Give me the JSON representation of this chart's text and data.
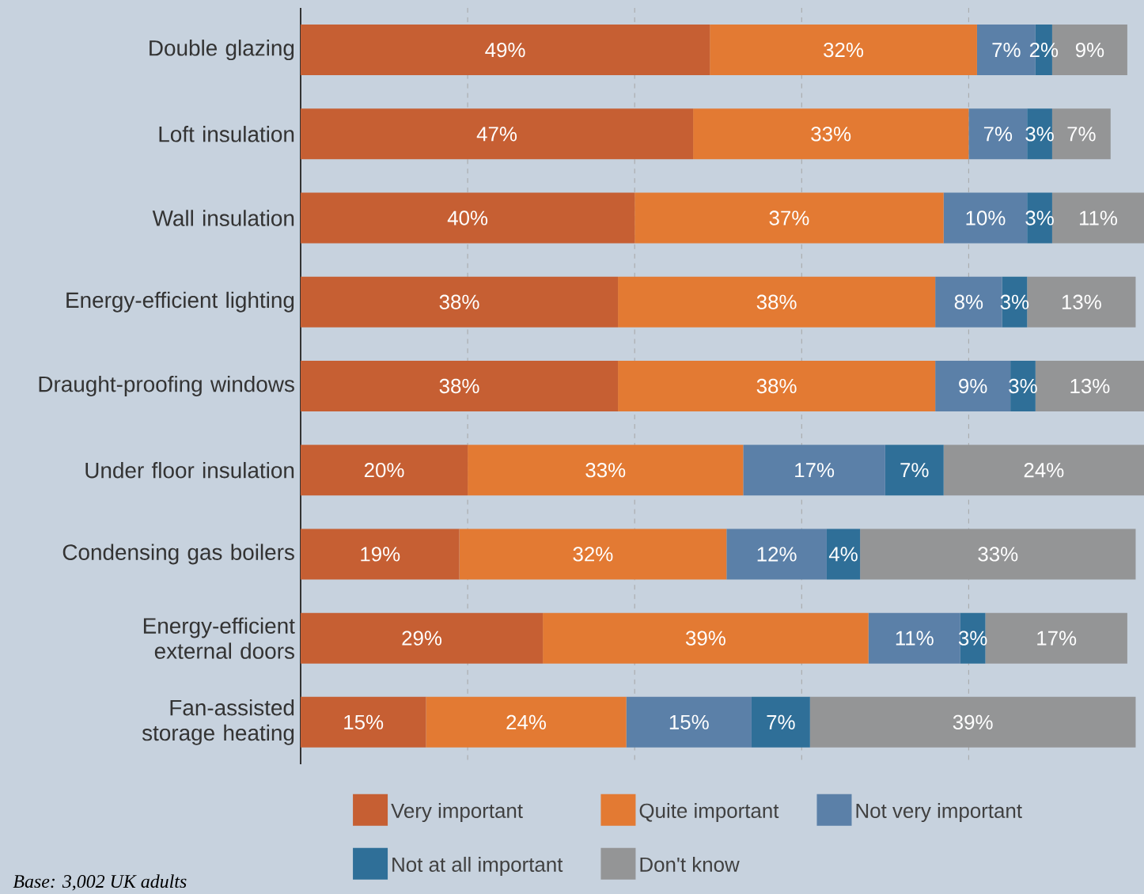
{
  "chart_data": {
    "type": "bar",
    "orientation": "horizontal",
    "stacked": true,
    "categories": [
      "Double glazing",
      "Loft insulation",
      "Wall insulation",
      "Energy-efficient lighting",
      "Draught-proofing windows",
      "Under floor insulation",
      "Condensing gas boilers",
      "Energy-efficient external doors",
      "Fan-assisted storage heating"
    ],
    "series": [
      {
        "name": "Very important",
        "color": "#c65f33",
        "values": [
          49,
          47,
          40,
          38,
          38,
          20,
          19,
          29,
          15
        ],
        "value_labels": [
          "49%",
          "47%",
          "40%",
          "38%",
          "38%",
          "20%",
          "19%",
          "29%",
          "15%"
        ]
      },
      {
        "name": "Quite important",
        "color": "#e37a33",
        "values": [
          32,
          33,
          37,
          38,
          38,
          33,
          32,
          39,
          24
        ],
        "value_labels": [
          "32%",
          "33%",
          "37%",
          "38%",
          "38%",
          "33%",
          "32%",
          "39%",
          "24%"
        ]
      },
      {
        "name": "Not very important",
        "color": "#5b80a8",
        "values": [
          7,
          7,
          10,
          8,
          9,
          17,
          12,
          11,
          15
        ],
        "value_labels": [
          "7%",
          "7%",
          "10%",
          "8%",
          "9%",
          "17%",
          "12%",
          "11%",
          "15%"
        ]
      },
      {
        "name": "Not at all important",
        "color": "#2f6f98",
        "values": [
          2,
          3,
          3,
          3,
          3,
          7,
          4,
          3,
          7
        ],
        "value_labels": [
          "2%",
          "3%",
          "3%",
          "3%",
          "3%",
          "7%",
          "4%",
          "3%",
          "7%"
        ]
      },
      {
        "name": "Don't know",
        "color": "#949596",
        "values": [
          9,
          7,
          11,
          13,
          13,
          24,
          33,
          17,
          39
        ],
        "value_labels": [
          "9%",
          "7%",
          "11%",
          "13%",
          "13%",
          "24%",
          "33%",
          "17%",
          "39%"
        ]
      }
    ],
    "xlim": [
      0,
      101
    ],
    "xticks": [
      {
        "value": 20,
        "label": null
      },
      {
        "value": 40,
        "label": null
      },
      {
        "value": 60,
        "label": null
      },
      {
        "value": 80,
        "label": null
      }
    ],
    "tick_labels": "y",
    "grid": "x",
    "legend": "bottom",
    "annotations": [
      "Base: 3,002 UK adults"
    ]
  }
}
